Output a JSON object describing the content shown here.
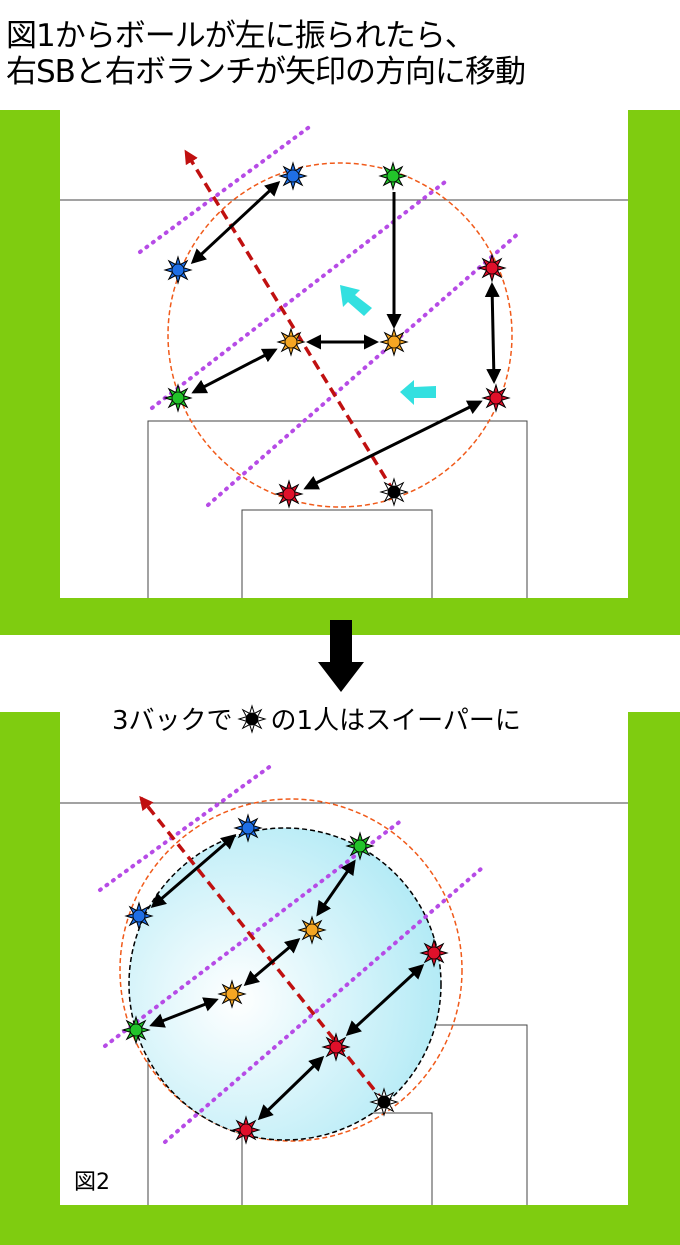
{
  "title": {
    "line1": "図1からボールが左に振られたら、",
    "line2": "右SBと右ボランチが矢印の方向に移動"
  },
  "caption": {
    "before": "3バックで",
    "after": "の1人はスイーパーに"
  },
  "figure2_label": "図2",
  "colors": {
    "pitch_band": "#7fcc10",
    "blue": "#1f6fe6",
    "green": "#22c42a",
    "orange": "#f5a623",
    "red": "#e0102a",
    "black": "#000000",
    "purple": "#b64be6",
    "cyan": "#33e0e0",
    "ball_path": "#c01010",
    "circle": "#f05a1a"
  },
  "icons": {
    "player": "star-marker-icon",
    "down": "down-arrow-icon",
    "move": "cyan-move-arrow-icon"
  }
}
